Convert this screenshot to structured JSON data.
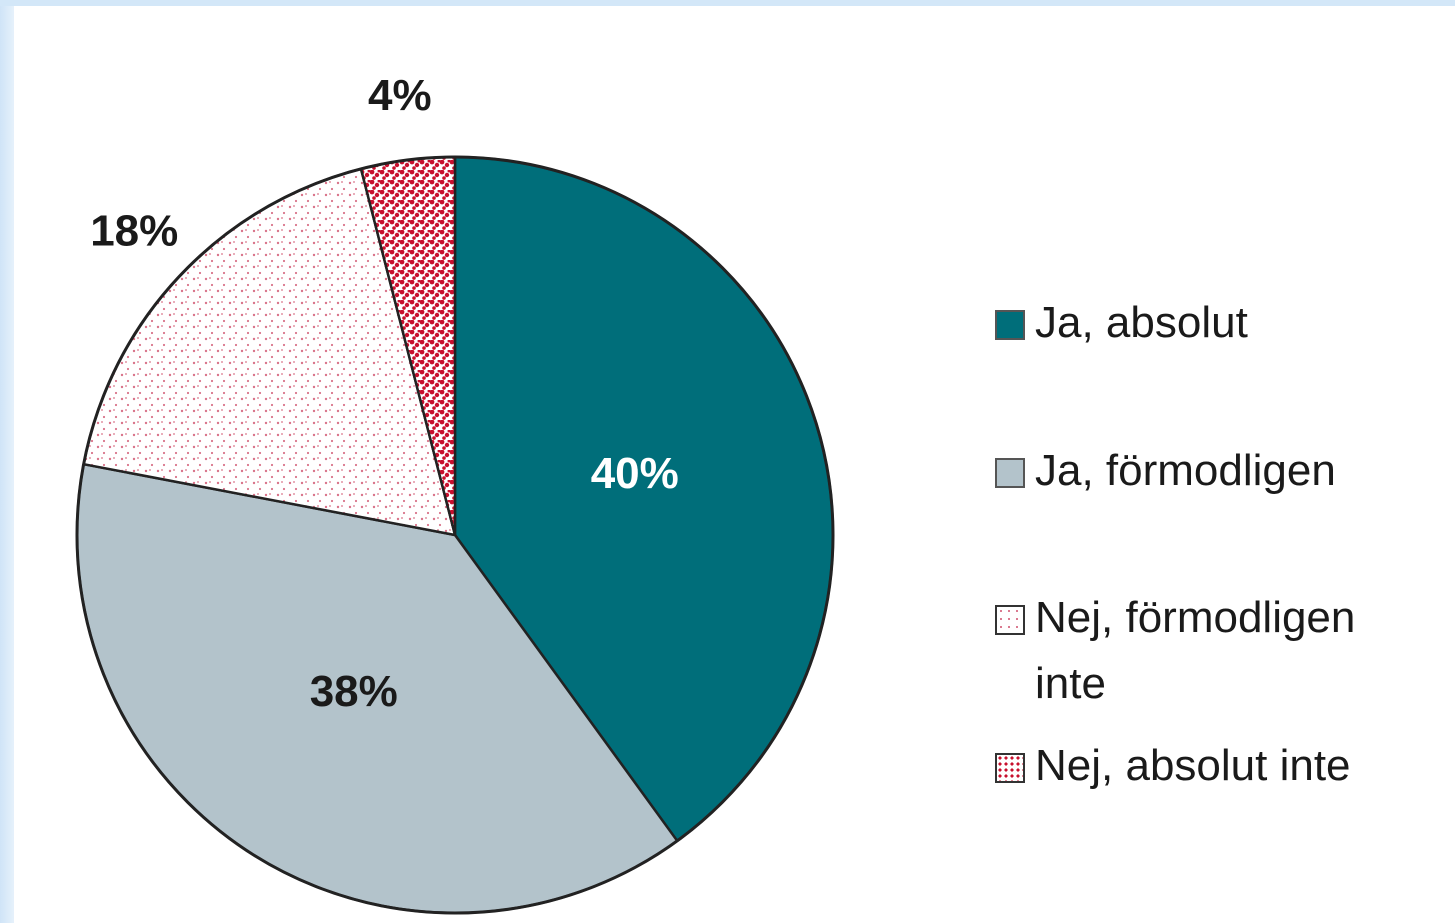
{
  "chart_data": {
    "type": "pie",
    "categories": [
      "Ja, absolut",
      "Ja, förmodligen",
      "Nej, förmodligen inte",
      "Nej, absolut inte"
    ],
    "values": [
      40,
      38,
      18,
      4
    ],
    "value_labels": [
      "40%",
      "38%",
      "18%",
      "4%"
    ],
    "colors": [
      "#006e7a",
      "#b3c3cb",
      "#d9748a",
      "#c8102e"
    ],
    "fills": [
      "solid",
      "solid",
      "dots",
      "dense-dots"
    ]
  }
}
